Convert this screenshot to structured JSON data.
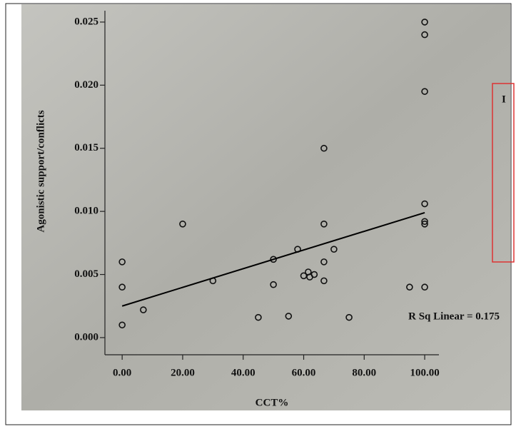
{
  "chart_data": {
    "type": "scatter",
    "x_label": "CCT%",
    "y_label": "Agonistic support/conflicts",
    "annotation": "R Sq Linear = 0.175",
    "cropped_box_text": "I",
    "x": [
      0,
      0,
      0,
      7,
      20,
      30,
      45,
      50,
      50,
      55,
      58,
      60,
      61.5,
      62,
      63.5,
      66.7,
      66.7,
      66.7,
      66.7,
      70,
      75,
      95,
      100,
      100,
      100,
      100,
      100,
      100,
      100
    ],
    "values": [
      0.006,
      0.004,
      0.001,
      0.0022,
      0.009,
      0.0045,
      0.0016,
      0.0062,
      0.0042,
      0.0017,
      0.007,
      0.0049,
      0.0052,
      0.0048,
      0.005,
      0.015,
      0.009,
      0.006,
      0.0045,
      0.007,
      0.0016,
      0.004,
      0.025,
      0.024,
      0.0195,
      0.0106,
      0.0092,
      0.009,
      0.004
    ],
    "color": "#111111",
    "fit_line": {
      "x": [
        0,
        100
      ],
      "y": [
        0.0025,
        0.0099
      ],
      "color": "#000000"
    },
    "xlim": [
      -5.7,
      104.7
    ],
    "ylim": [
      -0.00136,
      0.0259
    ],
    "xticks": [
      {
        "value": 0,
        "label": "0.00"
      },
      {
        "value": 20,
        "label": "20.00"
      },
      {
        "value": 40,
        "label": "40.00"
      },
      {
        "value": 60,
        "label": "60.00"
      },
      {
        "value": 80,
        "label": "80.00"
      },
      {
        "value": 100,
        "label": "100.00"
      }
    ],
    "yticks": [
      {
        "value": 0,
        "label": "0.000"
      },
      0.005,
      {
        "value": 0.01,
        "label": "0.010"
      },
      0.015,
      {
        "value": 0.02,
        "label": "0.020"
      },
      0.025
    ]
  }
}
